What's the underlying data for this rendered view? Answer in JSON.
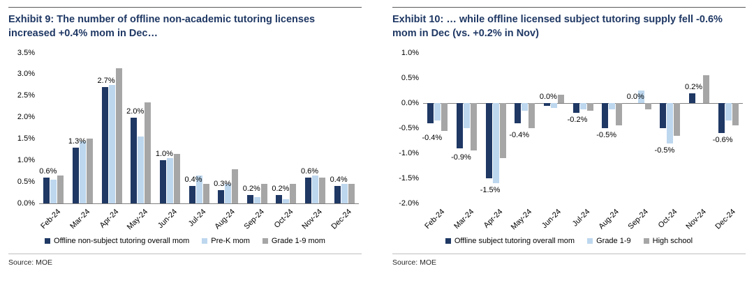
{
  "chart_data": [
    {
      "type": "bar",
      "title": "Exhibit 9: The number of offline non-academic tutoring licenses increased +0.4% mom in Dec…",
      "source": "Source: MOE",
      "xlabel": "",
      "ylabel": "",
      "grid": false,
      "legend_position": "bottom",
      "ylim": [
        0,
        3.5
      ],
      "yticks": [
        "3.5%",
        "3.0%",
        "2.5%",
        "2.0%",
        "1.5%",
        "1.0%",
        "0.5%",
        "0.0%"
      ],
      "ytick_values": [
        3.5,
        3.0,
        2.5,
        2.0,
        1.5,
        1.0,
        0.5,
        0.0
      ],
      "categories": [
        "Feb-24",
        "Mar-24",
        "Apr-24",
        "May-24",
        "Jun-24",
        "Jul-24",
        "Aug-24",
        "Sep-24",
        "Oct-24",
        "Nov-24",
        "Dec-24"
      ],
      "series": [
        {
          "name": "Offline non-subject tutoring overall mom",
          "color": "#1F3864",
          "values": [
            0.6,
            1.3,
            2.7,
            2.0,
            1.0,
            0.4,
            0.3,
            0.2,
            0.2,
            0.6,
            0.4
          ]
        },
        {
          "name": "Pre-K mom",
          "color": "#BDD7EE",
          "values": [
            0.55,
            1.45,
            2.75,
            1.55,
            1.05,
            0.65,
            0.45,
            0.15,
            0.1,
            0.65,
            0.45
          ]
        },
        {
          "name": "Grade 1-9 mom",
          "color": "#A6A6A6",
          "values": [
            0.65,
            1.5,
            3.15,
            2.35,
            1.15,
            0.45,
            0.8,
            0.45,
            0.45,
            0.6,
            0.45
          ]
        }
      ],
      "data_labels": [
        "0.6%",
        "1.3%",
        "2.7%",
        "2.0%",
        "1.0%",
        "0.4%",
        "0.3%",
        "0.2%",
        "0.2%",
        "0.6%",
        "0.4%"
      ]
    },
    {
      "type": "bar",
      "title": "Exhibit 10: … while offline licensed subject tutoring supply fell -0.6% mom in Dec (vs. +0.2% in Nov)",
      "source": "Source: MOE",
      "xlabel": "",
      "ylabel": "",
      "grid": false,
      "legend_position": "bottom",
      "ylim": [
        -2.0,
        1.0
      ],
      "yticks": [
        "1.0%",
        "0.5%",
        "0.0%",
        "-0.5%",
        "-1.0%",
        "-1.5%",
        "-2.0%"
      ],
      "ytick_values": [
        1.0,
        0.5,
        0.0,
        -0.5,
        -1.0,
        -1.5,
        -2.0
      ],
      "categories": [
        "Feb-24",
        "Mar-24",
        "Apr-24",
        "May-24",
        "Jun-24",
        "Jul-24",
        "Aug-24",
        "Sep-24",
        "Oct-24",
        "Nov-24",
        "Dec-24"
      ],
      "series": [
        {
          "name": "Offline subject tutoring overall mom",
          "color": "#1F3864",
          "values": [
            -0.4,
            -0.9,
            -1.5,
            -0.4,
            -0.05,
            -0.2,
            -0.5,
            0.0,
            -0.5,
            0.2,
            -0.6
          ]
        },
        {
          "name": "Grade 1-9",
          "color": "#BDD7EE",
          "values": [
            -0.35,
            -0.5,
            -1.6,
            -0.15,
            -0.1,
            -0.12,
            -0.12,
            0.25,
            -0.8,
            0.0,
            -0.35
          ]
        },
        {
          "name": "High school",
          "color": "#A6A6A6",
          "values": [
            -0.55,
            -0.95,
            -1.1,
            -0.5,
            0.17,
            -0.15,
            -0.45,
            -0.12,
            -0.65,
            0.55,
            -0.45
          ]
        }
      ],
      "data_labels": [
        "-0.4%",
        "-0.9%",
        "-1.5%",
        "-0.4%",
        "0.0%",
        "-0.2%",
        "-0.5%",
        "0.0%",
        "-0.5%",
        "0.2%",
        "-0.6%"
      ]
    }
  ]
}
